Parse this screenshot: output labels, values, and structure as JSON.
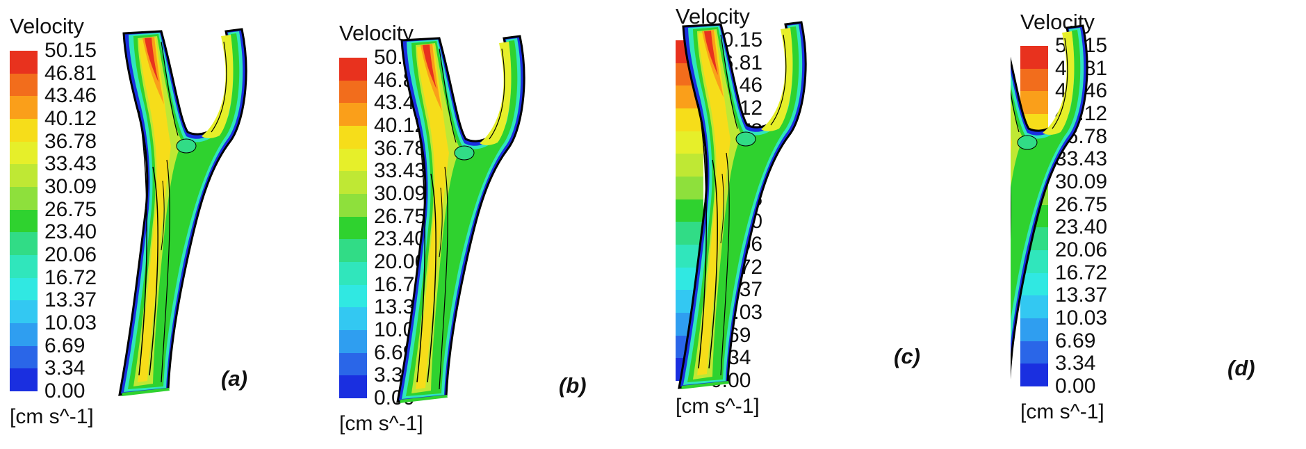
{
  "legend": {
    "title": "Velocity",
    "unit": "[cm s^-1]",
    "ticks": [
      "50.15",
      "46.81",
      "43.46",
      "40.12",
      "36.78",
      "33.43",
      "30.09",
      "26.75",
      "23.40",
      "20.06",
      "16.72",
      "13.37",
      "10.03",
      "6.69",
      "3.34",
      "0.00"
    ],
    "colors": [
      "#e8321e",
      "#f26d1c",
      "#fa9f1a",
      "#f6dd1a",
      "#e6ef2a",
      "#bfe834",
      "#8ee03c",
      "#2fd22f",
      "#31dc86",
      "#30e6bc",
      "#30e8e2",
      "#33c8f2",
      "#2f9ef0",
      "#2a66e8",
      "#1a2fe0"
    ]
  },
  "panels": [
    {
      "label": "(a)"
    },
    {
      "label": "(b)"
    },
    {
      "label": "(c)"
    },
    {
      "label": "(d)"
    }
  ]
}
